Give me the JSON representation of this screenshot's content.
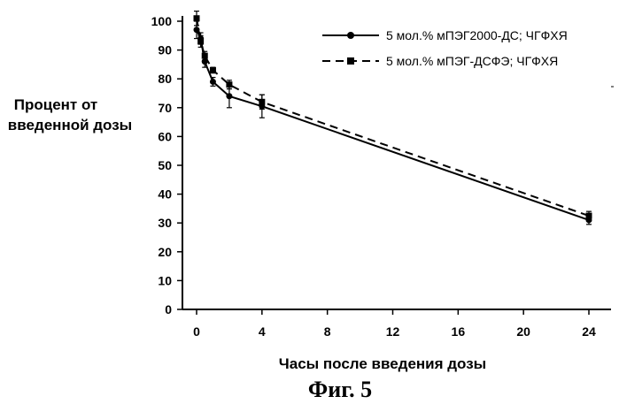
{
  "chart_data": {
    "type": "line",
    "ylabel_lines": [
      "Процент  от",
      "введенной дозы"
    ],
    "xlabel": "Часы после введения дозы",
    "caption": "Фиг.  5",
    "xlim": [
      0,
      24
    ],
    "ylim": [
      0,
      100
    ],
    "x_ticks": [
      0,
      4,
      8,
      12,
      16,
      20,
      24
    ],
    "y_ticks": [
      0,
      10,
      20,
      30,
      40,
      50,
      60,
      70,
      80,
      90,
      100
    ],
    "legend_position": "top-right",
    "series": [
      {
        "name": "5 мол.% мПЭГ2000-ДС; ЧГФХЯ",
        "style": "solid",
        "marker": "circle",
        "x": [
          0,
          0.25,
          0.5,
          1,
          2,
          4,
          24
        ],
        "y": [
          97,
          94,
          86,
          79,
          74,
          70.5,
          31
        ],
        "err": [
          3,
          2,
          2,
          1.5,
          4,
          4,
          1.5
        ]
      },
      {
        "name": "5 мол.% мПЭГ-ДСФЭ; ЧГФХЯ",
        "style": "dashed",
        "marker": "square",
        "x": [
          0,
          0.25,
          0.5,
          1,
          2,
          4,
          24
        ],
        "y": [
          101,
          93,
          88,
          83,
          78,
          72,
          32.5
        ],
        "err": [
          2.5,
          2,
          1.5,
          1,
          1.5,
          2.5,
          1.5
        ]
      }
    ]
  }
}
